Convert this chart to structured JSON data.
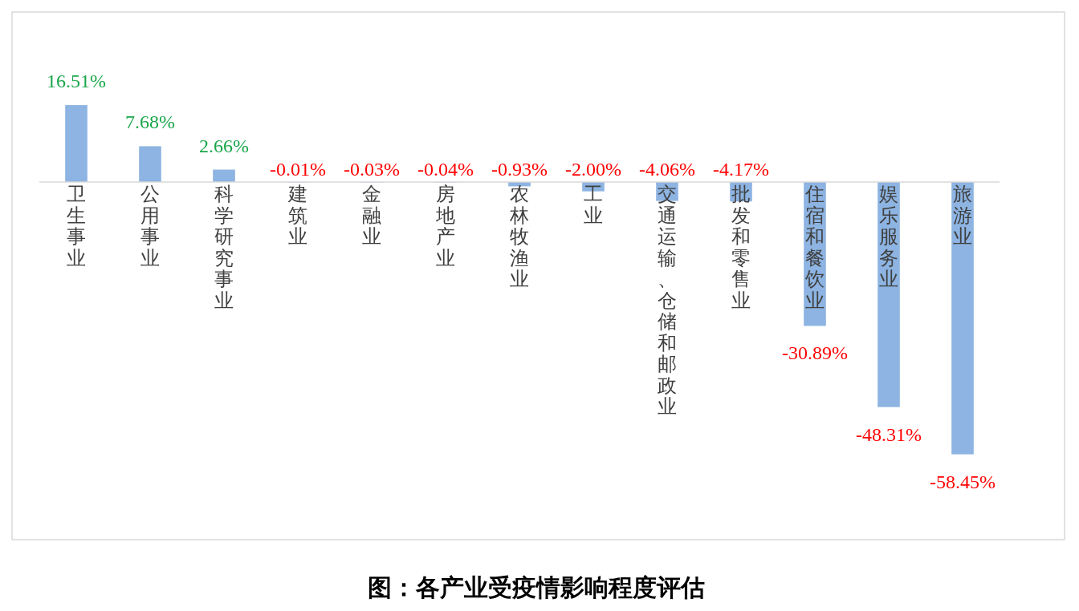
{
  "chart_data": {
    "type": "bar",
    "title": "图：各产业受疫情影响程度评估",
    "categories": [
      "卫生事业",
      "公用事业",
      "科学研究事业",
      "建筑业",
      "金融业",
      "房地产业",
      "农林牧渔业",
      "工业",
      "交通运输、仓储和邮政业",
      "批发和零售业",
      "住宿和餐饮业",
      "娱乐服务业",
      "旅游业"
    ],
    "values": [
      16.51,
      7.68,
      2.66,
      -0.01,
      -0.03,
      -0.04,
      -0.93,
      -2.0,
      -4.06,
      -4.17,
      -30.89,
      -48.31,
      -58.45
    ],
    "color": "#8db4e2",
    "value_labels": [
      "16.51%",
      "7.68%",
      "2.66%",
      "-0.01%",
      "-0.03%",
      "-0.04%",
      "-0.93%",
      "-2.00%",
      "-4.06%",
      "-4.17%",
      "-30.89%",
      "-48.31%",
      "-58.45%"
    ]
  }
}
